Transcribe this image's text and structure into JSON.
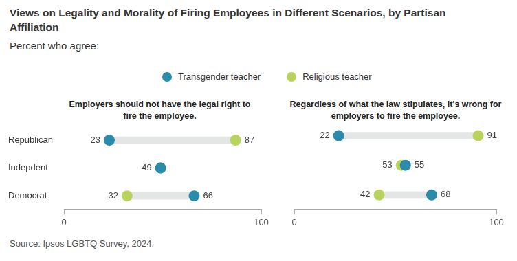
{
  "title": "Views on Legality and Morality of Firing Employees in Different Scenarios, by Partisan Affiliation",
  "subtitle": "Percent who agree:",
  "source": "Source: Ipsos LGBTQ Survey, 2024.",
  "legend": "top",
  "chart_data": [
    {
      "type": "dumbbell",
      "title": "Employers should not have the legal right to fire the employee.",
      "categories": [
        "Republican",
        "Indepdent",
        "Democrat"
      ],
      "series": [
        {
          "name": "Transgender teacher",
          "color": "#2a8bab",
          "values": [
            23,
            49,
            66
          ]
        },
        {
          "name": "Religious teacher",
          "color": "#b9d45e",
          "values": [
            87,
            49,
            32
          ]
        }
      ],
      "orientation": "horizontal",
      "xlim": [
        0,
        100
      ],
      "xticks": [
        0,
        100
      ],
      "grid": false,
      "data_labels": true
    },
    {
      "type": "dumbbell",
      "title": "Regardless of what the law stipulates, it's wrong for employers to fire the employee.",
      "categories": [
        "Republican",
        "Indepdent",
        "Democrat"
      ],
      "series": [
        {
          "name": "Transgender teacher",
          "color": "#2a8bab",
          "values": [
            22,
            55,
            68
          ]
        },
        {
          "name": "Religious teacher",
          "color": "#b9d45e",
          "values": [
            91,
            53,
            42
          ]
        }
      ],
      "orientation": "horizontal",
      "xlim": [
        0,
        100
      ],
      "xticks": [
        0,
        100
      ],
      "grid": false,
      "data_labels": true,
      "tick_labels": "x"
    }
  ]
}
